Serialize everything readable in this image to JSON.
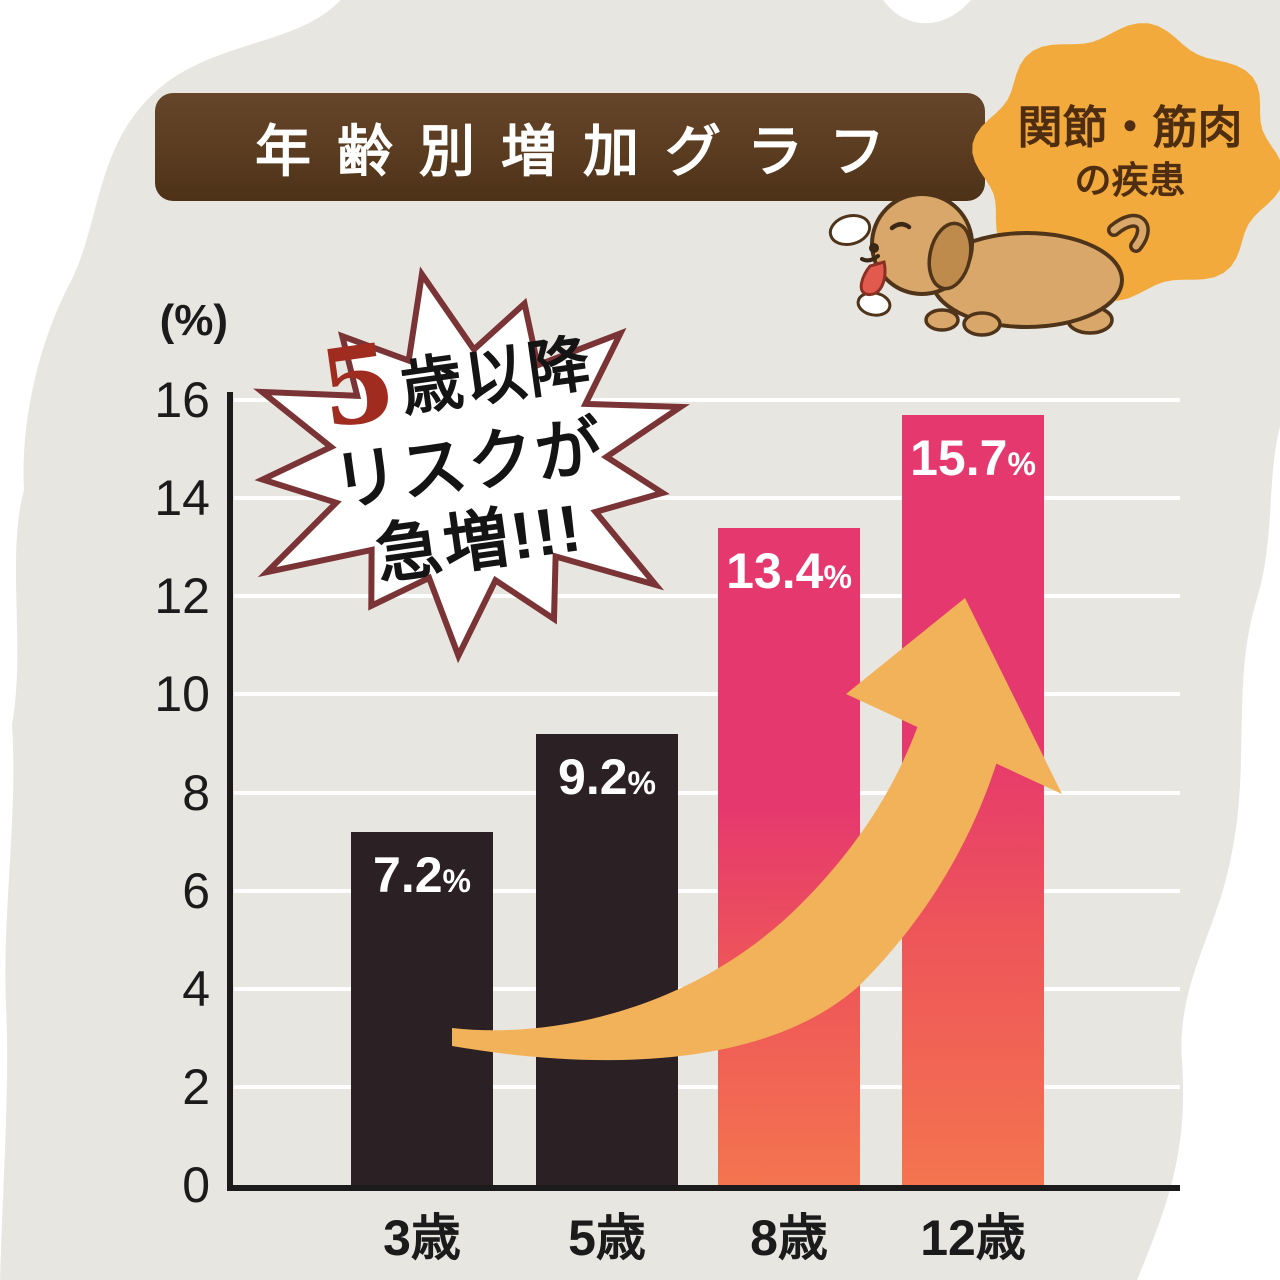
{
  "title_banner": {
    "label": "年齢別増加グラフ"
  },
  "badge": {
    "line1": "関節・筋肉",
    "line2": "の疾患"
  },
  "callout": {
    "big": "5",
    "big_suffix": "歳以降",
    "line2": "リスクが",
    "line3": "急増!!!"
  },
  "chart_data": {
    "type": "bar",
    "title": "年齢別増加グラフ",
    "subtitle_badge": "関節・筋肉の疾患",
    "categories": [
      "3歳",
      "5歳",
      "8歳",
      "12歳"
    ],
    "values": [
      7.2,
      9.2,
      13.4,
      15.7
    ],
    "value_labels": [
      "7.2%",
      "9.2%",
      "13.4%",
      "15.7%"
    ],
    "unit": "%",
    "axis_unit_label": "(%)",
    "y_ticks": [
      0,
      2,
      4,
      6,
      8,
      10,
      12,
      14,
      16
    ],
    "ylim": [
      0,
      16
    ],
    "grid": true,
    "legend": "none",
    "bar_styles": [
      "dark",
      "dark",
      "gradient",
      "gradient"
    ],
    "annotation": "5歳以降リスクが急増!!!"
  },
  "colors": {
    "background": "#ffffff",
    "blob_gray": "#e8e6e1",
    "banner_brown": "#5a3c20",
    "banner_text": "#ffffff",
    "badge_orange": "#f2aa3d",
    "badge_text": "#4f2d11",
    "bar_dark": "#2b2125",
    "bar_pink_top": "#e5386e",
    "bar_orange_bottom": "#f4744f",
    "arrow": "#f2b259",
    "burst_stroke": "#7b3436",
    "burst_fill": "#ffffff",
    "callout_accent": "#a02c20",
    "text_dark": "#1b1b1b",
    "value_label_text": "#ffffff",
    "grid_line": "#ffffff"
  }
}
